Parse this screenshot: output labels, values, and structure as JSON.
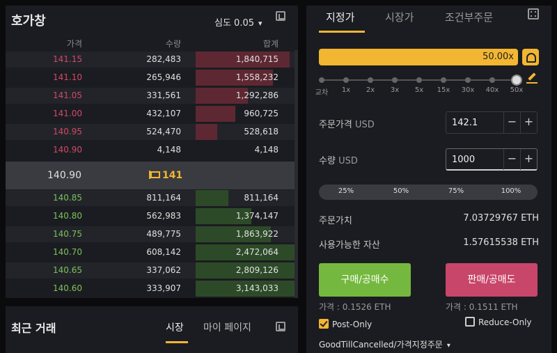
{
  "orderbook": {
    "title": "호가창",
    "depth_label": "심도 0.05",
    "headers": {
      "price": "가격",
      "qty": "수량",
      "total": "합계"
    },
    "asks": [
      {
        "price": "141.15",
        "qty": "282,483",
        "total": "1,840,715",
        "depth": 0.95
      },
      {
        "price": "141.10",
        "qty": "265,946",
        "total": "1,558,232",
        "depth": 0.78
      },
      {
        "price": "141.05",
        "qty": "331,561",
        "total": "1,292,286",
        "depth": 0.53
      },
      {
        "price": "141.00",
        "qty": "432,107",
        "total": "960,725",
        "depth": 0.4
      },
      {
        "price": "140.95",
        "qty": "524,470",
        "total": "528,618",
        "depth": 0.22
      },
      {
        "price": "140.90",
        "qty": "4,148",
        "total": "4,148",
        "depth": 0.0
      }
    ],
    "mid_price": "140.90",
    "mark_price": "141",
    "bids": [
      {
        "price": "140.85",
        "qty": "811,164",
        "total": "811,164",
        "depth": 0.33
      },
      {
        "price": "140.80",
        "qty": "562,983",
        "total": "1,374,147",
        "depth": 0.56
      },
      {
        "price": "140.75",
        "qty": "489,775",
        "total": "1,863,922",
        "depth": 0.76
      },
      {
        "price": "140.70",
        "qty": "608,142",
        "total": "2,472,064",
        "depth": 1.0
      },
      {
        "price": "140.65",
        "qty": "337,062",
        "total": "2,809,126",
        "depth": 1.0
      },
      {
        "price": "140.60",
        "qty": "333,907",
        "total": "3,143,033",
        "depth": 1.0
      }
    ]
  },
  "trades": {
    "title": "최근 거래",
    "tab_market": "시장",
    "tab_mypage": "마이 페이지"
  },
  "order_form": {
    "tabs": [
      "지정가",
      "시장가",
      "조건부주문"
    ],
    "active_tab": "지정가",
    "leverage": "50.00x",
    "leverage_level": 1.0,
    "slider_labels": [
      "교차",
      "1x",
      "2x",
      "3x",
      "5x",
      "15x",
      "30x",
      "40x",
      "50x"
    ],
    "price": {
      "label": "주문가격",
      "unit": "USD",
      "value": "142.1"
    },
    "quantity": {
      "label": "수량",
      "unit": "USD",
      "value": "1000"
    },
    "percent_options": [
      "25%",
      "50%",
      "75%",
      "100%"
    ],
    "order_value": {
      "label": "주문가치",
      "value": "7.03729767 ETH"
    },
    "available": {
      "label": "사용가능한 자산",
      "value": "1.57615538 ETH"
    },
    "buy_label": "구매/공매수",
    "sell_label": "판매/공매도",
    "buy_est": "가격 : 0.1526 ETH",
    "sell_est": "가격 : 0.1511 ETH",
    "post_only": {
      "label": "Post-Only",
      "checked": true
    },
    "reduce_only": {
      "label": "Reduce-Only",
      "checked": false
    },
    "time_in_force": "GoodTillCancelled/가격지정주문",
    "colors": {
      "accent": "#f2b632",
      "buy": "#75b83f",
      "sell": "#c8466a",
      "ask_text": "#d04a66",
      "bid_text": "#7cc35a"
    }
  }
}
